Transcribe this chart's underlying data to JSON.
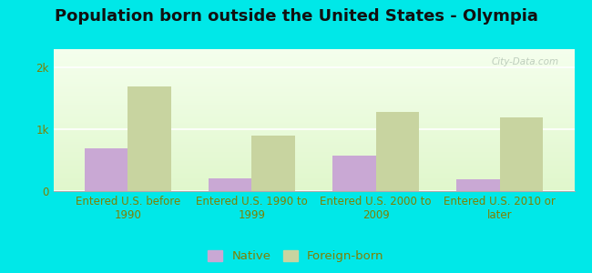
{
  "title": "Population born outside the United States - Olympia",
  "categories": [
    "Entered U.S. before\n1990",
    "Entered U.S. 1990 to\n1999",
    "Entered U.S. 2000 to\n2009",
    "Entered U.S. 2010 or\nlater"
  ],
  "native_values": [
    700,
    200,
    580,
    195
  ],
  "foreign_values": [
    1700,
    900,
    1280,
    1190
  ],
  "native_color": "#c9a8d4",
  "foreign_color": "#c8d4a0",
  "background_outer": "#00e8e8",
  "background_inner": "#eaf6e2",
  "ytick_labels": [
    "0",
    "1k",
    "2k"
  ],
  "ylim": [
    0,
    2300
  ],
  "bar_width": 0.35,
  "title_fontsize": 13,
  "tick_fontsize": 8.5,
  "legend_fontsize": 9.5,
  "label_color": "#808000",
  "watermark_text": "City-Data.com",
  "watermark_color": "#b8c8b8"
}
